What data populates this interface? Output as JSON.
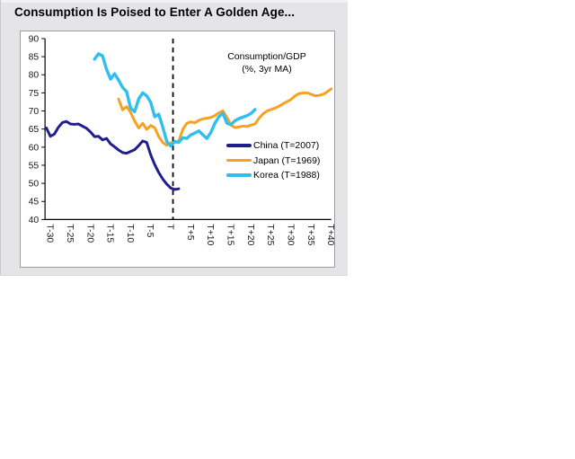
{
  "panel": {
    "title": "Consumption Is Poised to Enter A Golden Age..."
  },
  "chart_data": {
    "type": "line",
    "title": "Consumption Is Poised to Enter A Golden Age...",
    "annotation_line1": "Consumption/GDP",
    "annotation_line2": "(%, 3yr MA)",
    "xlabel": "",
    "ylabel": "",
    "ylim": [
      40,
      90
    ],
    "yticks": [
      40,
      45,
      50,
      55,
      60,
      65,
      70,
      75,
      80,
      85,
      90
    ],
    "xticks": [
      -30,
      -25,
      -20,
      -15,
      -10,
      -5,
      0,
      5,
      10,
      15,
      20,
      25,
      30,
      35,
      40
    ],
    "xtick_labels": [
      "T-30",
      "T-25",
      "T-20",
      "T-15",
      "T-10",
      "T-5",
      "T",
      "T+5",
      "T+10",
      "T+15",
      "T+20",
      "T+25",
      "T+30",
      "T+35",
      "T+40"
    ],
    "event_line_t": 0,
    "grid": false,
    "legend_position": "inside-right",
    "x_unit": "years relative to event year T",
    "series": [
      {
        "name": "China (T=2007)",
        "color": "#201d8d",
        "t_start": -31,
        "t_step": 1,
        "values": [
          65.3,
          63.0,
          63.6,
          65.5,
          66.8,
          67.1,
          66.4,
          66.3,
          66.4,
          65.8,
          65.2,
          64.2,
          62.9,
          63.0,
          62.0,
          62.4,
          60.9,
          60.1,
          59.2,
          58.5,
          58.3,
          58.8,
          59.3,
          60.4,
          61.7,
          61.3,
          57.9,
          55.2,
          53.0,
          51.2,
          49.8,
          48.7,
          48.3,
          48.5
        ]
      },
      {
        "name": "Japan (T=1969)",
        "color": "#f9a11e",
        "t_start": -13,
        "t_step": 1,
        "values": [
          73.3,
          70.3,
          71.2,
          69.6,
          67.2,
          65.3,
          66.6,
          64.9,
          66.0,
          65.4,
          62.9,
          61.3,
          60.5,
          61.2,
          61.3,
          61.7,
          64.9,
          66.6,
          67.0,
          66.7,
          67.4,
          67.8,
          68.0,
          68.2,
          68.7,
          69.5,
          70.0,
          68.2,
          66.1,
          65.4,
          65.6,
          65.8,
          65.7,
          66.1,
          66.4,
          68.0,
          69.2,
          70.0,
          70.4,
          70.8,
          71.3,
          72.0,
          72.6,
          73.2,
          74.2,
          74.8,
          75.0,
          75.0,
          74.6,
          74.2,
          74.3,
          74.6,
          75.3,
          76.1
        ]
      },
      {
        "name": "Korea (T=1988)",
        "color": "#2fbfee",
        "t_start": -19,
        "t_step": 1,
        "values": [
          84.3,
          85.8,
          85.2,
          81.5,
          78.8,
          80.3,
          78.5,
          76.5,
          75.3,
          70.8,
          69.8,
          73.3,
          75.0,
          74.2,
          72.4,
          68.4,
          69.1,
          65.6,
          61.6,
          60.3,
          61.6,
          61.3,
          62.6,
          62.4,
          63.4,
          63.9,
          64.5,
          63.4,
          62.4,
          64.1,
          66.6,
          68.4,
          69.4,
          66.6,
          66.2,
          67.3,
          67.9,
          68.3,
          68.7,
          69.3,
          70.4
        ]
      }
    ]
  }
}
